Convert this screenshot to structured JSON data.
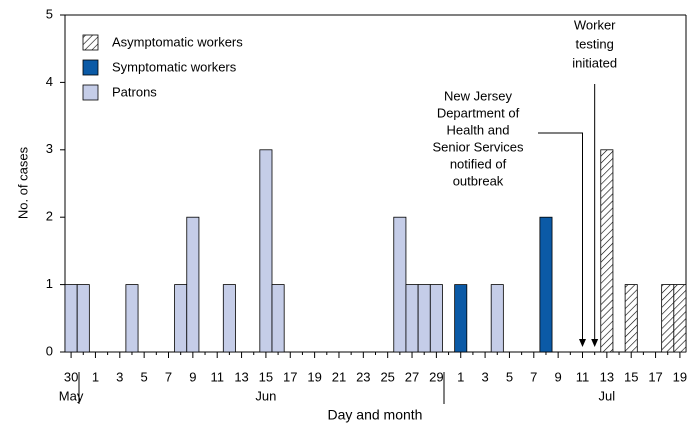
{
  "chart_data": {
    "type": "bar",
    "stacked": true,
    "categories": [
      "30",
      null,
      "1",
      null,
      "3",
      null,
      "5",
      null,
      "7",
      null,
      "9",
      null,
      "11",
      null,
      "13",
      null,
      "15",
      null,
      "17",
      null,
      "19",
      null,
      "21",
      null,
      "23",
      null,
      "25",
      null,
      "27",
      null,
      "29",
      null,
      "1",
      null,
      "3",
      null,
      "5",
      null,
      "7",
      null,
      "9",
      null,
      "11",
      null,
      "13",
      null,
      "15",
      null,
      "17",
      null,
      "19"
    ],
    "months": [
      {
        "label": "May",
        "index": 0
      },
      {
        "label": "Jun",
        "index": 16
      },
      {
        "label": "Jul",
        "index": 44
      }
    ],
    "series": [
      {
        "name": "Asymptomatic workers",
        "color": "#ffffff",
        "pattern": "hatch",
        "values": [
          0,
          0,
          0,
          0,
          0,
          0,
          0,
          0,
          0,
          0,
          0,
          0,
          0,
          0,
          0,
          0,
          0,
          0,
          0,
          0,
          0,
          0,
          0,
          0,
          0,
          0,
          0,
          0,
          0,
          0,
          0,
          0,
          0,
          0,
          0,
          0,
          0,
          0,
          0,
          0,
          0,
          0,
          0,
          0,
          3,
          0,
          1,
          0,
          0,
          1,
          1
        ]
      },
      {
        "name": "Symptomatic workers",
        "color": "#0b5aa6",
        "values": [
          0,
          0,
          0,
          0,
          0,
          0,
          0,
          0,
          0,
          0,
          0,
          0,
          0,
          0,
          0,
          0,
          0,
          0,
          0,
          0,
          0,
          0,
          0,
          0,
          0,
          0,
          0,
          0,
          0,
          0,
          0,
          0,
          1,
          0,
          0,
          0,
          0,
          0,
          0,
          2,
          0,
          0,
          0,
          0,
          0,
          0,
          0,
          0,
          0,
          0,
          0
        ]
      },
      {
        "name": "Patrons",
        "color": "#c5cde8",
        "values": [
          1,
          1,
          0,
          0,
          0,
          1,
          0,
          0,
          0,
          1,
          2,
          0,
          0,
          1,
          0,
          0,
          3,
          1,
          0,
          0,
          0,
          0,
          0,
          0,
          0,
          0,
          0,
          2,
          1,
          1,
          1,
          0,
          0,
          0,
          0,
          1,
          0,
          0,
          0,
          0,
          0,
          0,
          0,
          0,
          0,
          0,
          0,
          0,
          0,
          0,
          0
        ]
      }
    ],
    "ylim": [
      0,
      5
    ],
    "yticks": [
      0,
      1,
      2,
      3,
      4,
      5
    ],
    "ylabel": "No. of cases",
    "xlabel": "Day and month",
    "annotations": [
      {
        "index": 43,
        "lines": [
          "Worker",
          "testing",
          "initiated"
        ]
      },
      {
        "index": 42,
        "lines": [
          "New Jersey",
          "Department of",
          "Health and",
          "Senior Services",
          "notified of",
          "outbreak"
        ]
      }
    ]
  }
}
